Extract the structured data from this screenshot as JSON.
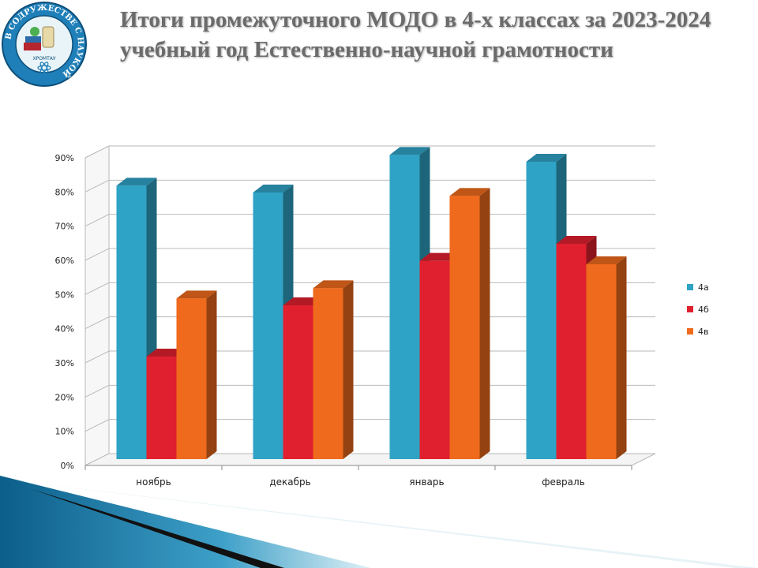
{
  "slide": {
    "title": "Итоги промежуточного МОДО в 4-х классах за 2023-2024 учебный год Естественно-научной грамотности"
  },
  "logo": {
    "icon": "school-emblem-icon",
    "ring_text": "В СОДРУЖЕСТВЕ С НАУКОЙ",
    "inner_text": "ХРОМТАУ"
  },
  "colors": {
    "series": [
      "#2fa3c5",
      "#e0202e",
      "#ef6a1c"
    ],
    "gridline": "#b9b9b9",
    "title": "#6b6b6b"
  },
  "chart_data": {
    "type": "bar",
    "categories": [
      "ноябрь",
      "декабрь",
      "январь",
      "февраль"
    ],
    "series": [
      {
        "name": "4а",
        "values": [
          80,
          78,
          89,
          87
        ]
      },
      {
        "name": "4б",
        "values": [
          30,
          45,
          58,
          63
        ]
      },
      {
        "name": "4в",
        "values": [
          47,
          50,
          77,
          57
        ]
      }
    ],
    "yticks": [
      "0%",
      "10%",
      "20%",
      "30%",
      "40%",
      "50%",
      "60%",
      "70%",
      "80%",
      "90%"
    ],
    "ylim": [
      0,
      90
    ],
    "grid": true,
    "legend": "right"
  }
}
